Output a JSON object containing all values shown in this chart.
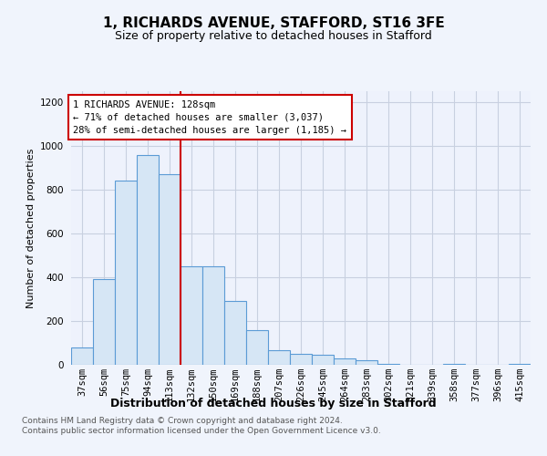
{
  "title1": "1, RICHARDS AVENUE, STAFFORD, ST16 3FE",
  "title2": "Size of property relative to detached houses in Stafford",
  "xlabel": "Distribution of detached houses by size in Stafford",
  "ylabel": "Number of detached properties",
  "categories": [
    "37sqm",
    "56sqm",
    "75sqm",
    "94sqm",
    "113sqm",
    "132sqm",
    "150sqm",
    "169sqm",
    "188sqm",
    "207sqm",
    "226sqm",
    "245sqm",
    "264sqm",
    "283sqm",
    "302sqm",
    "321sqm",
    "339sqm",
    "358sqm",
    "377sqm",
    "396sqm",
    "415sqm"
  ],
  "values": [
    80,
    390,
    840,
    960,
    870,
    450,
    450,
    290,
    160,
    65,
    50,
    45,
    30,
    20,
    5,
    0,
    0,
    5,
    0,
    0,
    5
  ],
  "bar_color": "#d6e6f5",
  "bar_edge_color": "#5b9bd5",
  "vline_color": "#cc0000",
  "vline_index": 5,
  "annotation_text": "1 RICHARDS AVENUE: 128sqm\n← 71% of detached houses are smaller (3,037)\n28% of semi-detached houses are larger (1,185) →",
  "annotation_box_facecolor": "#ffffff",
  "annotation_box_edgecolor": "#cc0000",
  "ylim_max": 1250,
  "yticks": [
    0,
    200,
    400,
    600,
    800,
    1000,
    1200
  ],
  "footer1": "Contains HM Land Registry data © Crown copyright and database right 2024.",
  "footer2": "Contains public sector information licensed under the Open Government Licence v3.0.",
  "fig_facecolor": "#f0f4fc",
  "plot_facecolor": "#eef2fc",
  "grid_color": "#c8d0e0",
  "title1_fontsize": 11,
  "title2_fontsize": 9,
  "xlabel_fontsize": 9,
  "ylabel_fontsize": 8,
  "tick_fontsize": 7.5
}
